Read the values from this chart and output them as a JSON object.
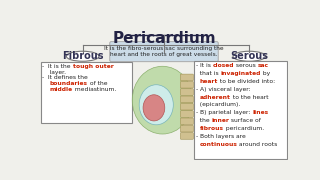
{
  "title": "Pericardium",
  "bg_color": "#f0f0eb",
  "center_box_text": "It is the fibro-serous sac surrounding the\nheart and the roots of great vessels.",
  "center_box_bg": "#ccdce8",
  "fibrous_label": "Fibrous",
  "serous_label": "Serous",
  "box_border_color": "#888888",
  "label_color": "#333355",
  "title_color": "#222244",
  "line_color": "#777777",
  "fibrous_text_lines": [
    [
      [
        "-  It is the ",
        "#222222",
        false
      ],
      [
        "tough outer",
        "#cc2200",
        true
      ]
    ],
    [
      [
        "    layer.",
        "#222222",
        false
      ]
    ],
    [
      [
        "-  It defines the",
        "#222222",
        false
      ]
    ],
    [
      [
        "    ",
        "#222222",
        false
      ],
      [
        "boundaries",
        "#cc2200",
        true
      ],
      [
        " of the",
        "#222222",
        false
      ]
    ],
    [
      [
        "    ",
        "#222222",
        false
      ],
      [
        "middle",
        "#cc2200",
        true
      ],
      [
        " mediastinum.",
        "#222222",
        false
      ]
    ]
  ],
  "serous_text_lines": [
    [
      [
        "- It is ",
        "#222222",
        false
      ],
      [
        "closed",
        "#cc2200",
        true
      ],
      [
        " serous ",
        "#222222",
        false
      ],
      [
        "sac",
        "#cc2200",
        true
      ]
    ],
    [
      [
        "  that is ",
        "#222222",
        false
      ],
      [
        "invaginated",
        "#cc2200",
        true
      ],
      [
        " by",
        "#222222",
        false
      ]
    ],
    [
      [
        "  ",
        "#222222",
        false
      ],
      [
        "heart",
        "#cc2200",
        true
      ],
      [
        " to be divided into:",
        "#222222",
        false
      ]
    ],
    [
      [
        "- A) visceral layer:",
        "#222222",
        false
      ]
    ],
    [
      [
        "  ",
        "#222222",
        false
      ],
      [
        "adherent",
        "#cc2200",
        true
      ],
      [
        " to the heart",
        "#222222",
        false
      ]
    ],
    [
      [
        "  (epicardium).",
        "#222222",
        false
      ]
    ],
    [
      [
        "- B) parietal layer: ",
        "#222222",
        false
      ],
      [
        "lines",
        "#cc2200",
        true
      ]
    ],
    [
      [
        "  the ",
        "#222222",
        false
      ],
      [
        "inner",
        "#cc2200",
        true
      ],
      [
        " surface of",
        "#222222",
        false
      ]
    ],
    [
      [
        "  ",
        "#222222",
        false
      ],
      [
        "fibrous",
        "#cc2200",
        true
      ],
      [
        " pericardium.",
        "#222222",
        false
      ]
    ],
    [
      [
        "- Both layers are",
        "#222222",
        false
      ]
    ],
    [
      [
        "  ",
        "#222222",
        false
      ],
      [
        "continuous",
        "#cc2200",
        true
      ],
      [
        " around roots",
        "#222222",
        false
      ]
    ]
  ]
}
